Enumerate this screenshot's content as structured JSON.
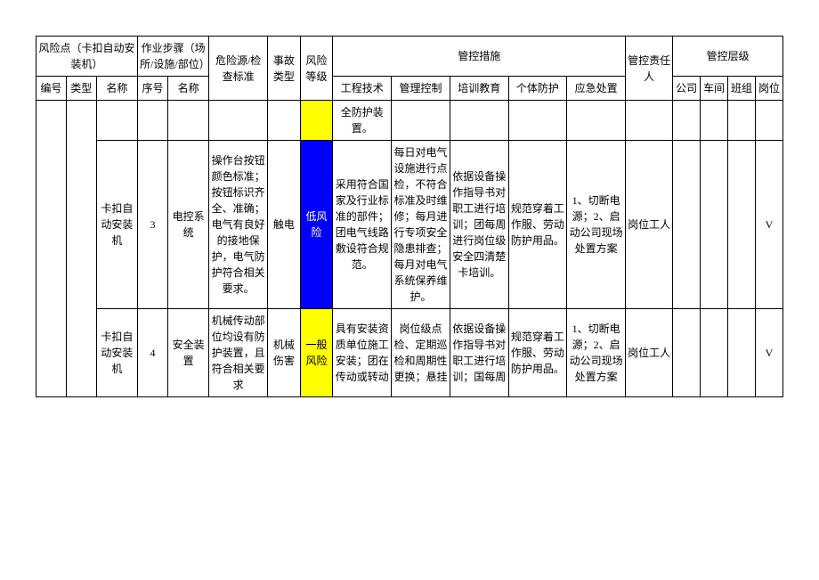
{
  "headers": {
    "risk_point_group": "风险点（卡扣自动安装机）",
    "work_step_group": "作业步骤（场所/设施/部位）",
    "hazard_standard": "危险源/检查标准",
    "accident_type": "事故类型",
    "risk_level": "风险等级",
    "control_measures": "管控措施",
    "control_responsible": "管控责任人",
    "control_level": "管控层级",
    "id": "编号",
    "type": "类型",
    "name": "名称",
    "seq": "序号",
    "step_name": "名称",
    "engineering": "工程技术",
    "management": "管理控制",
    "training": "培训教育",
    "ppe": "个体防护",
    "emergency": "应急处置",
    "company": "公司",
    "workshop": "车间",
    "team": "班组",
    "post": "岗位"
  },
  "rows": {
    "r0": {
      "engineering": "全防护装置。"
    },
    "r1": {
      "name": "卡扣自动安装机",
      "seq": "3",
      "step_name": "电控系统",
      "hazard": "操作台按钮颜色标准；按钮标识齐全、准确；电气有良好的接地保护，电气防护符合相关要求。",
      "accident": "触电",
      "risk": "低风险",
      "engineering": "采用符合国家及行业标准的部件；团电气线路敷设符合规范。",
      "management": "每日对电气设施进行点检，不符合标准及时维修；每月进行专项安全隐患排查；每月对电气系统保养维护。",
      "training": "依据设备操作指导书对职工进行培训；团每周进行岗位级安全四清楚卡培训。",
      "ppe": "规范穿着工作服、劳动防护用品。",
      "emergency": "1、切断电源；2、启动公司现场处置方案",
      "responsible": "岗位工人",
      "post_mark": "V"
    },
    "r2": {
      "name": "卡扣自动安装机",
      "seq": "4",
      "step_name": "安全装置",
      "hazard": "机械传动部位均设有防护装置，且符合相关要求",
      "accident": "机械伤害",
      "risk": "一般风险",
      "engineering": "具有安装资质单位施工安装；团在传动或转动",
      "management": "岗位级点检、定期巡检和周期性更换；悬挂",
      "training": "依据设备操作指导书对职工进行培训；国每周",
      "ppe": "规范穿着工作服、劳动防护用品。",
      "emergency": "1、切断电源；2、启动公司现场处置方案",
      "responsible": "岗位工人",
      "post_mark": "V"
    }
  },
  "colors": {
    "low_risk_bg": "#0000ff",
    "low_risk_text": "#ffffff",
    "general_risk_bg": "#ffff00",
    "border": "#000000",
    "bg": "#ffffff"
  }
}
